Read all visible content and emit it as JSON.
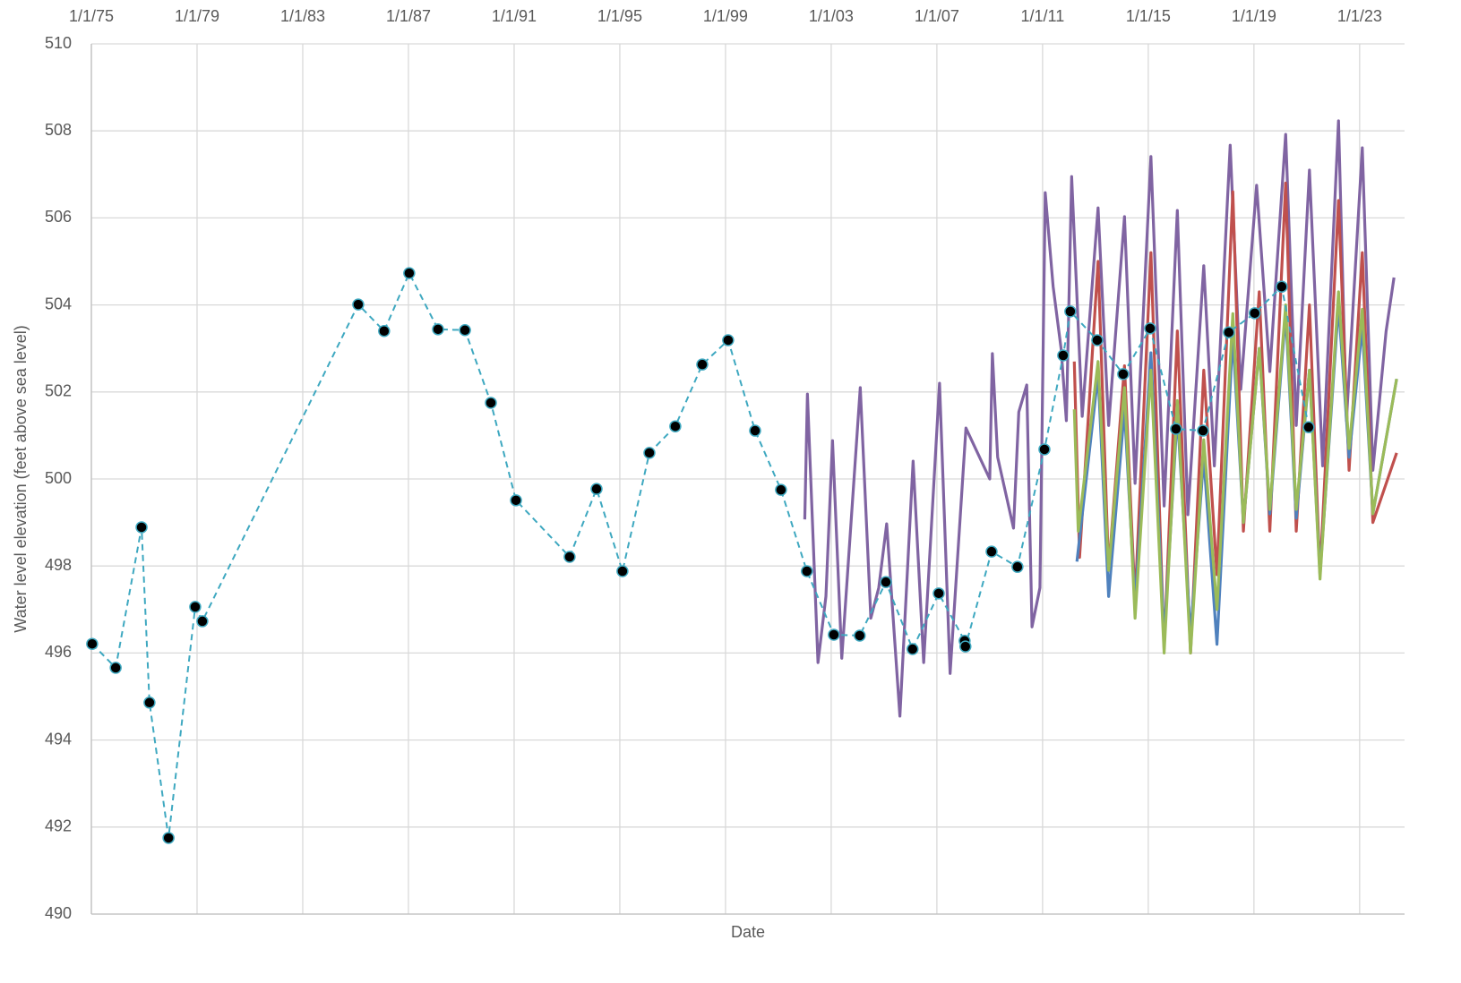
{
  "chart_data": {
    "type": "line",
    "x_label": "Date",
    "y_label": "Water level elevation (feet above sea level)",
    "xlim": [
      1975,
      2024.7
    ],
    "xticks": [
      {
        "value": 1975,
        "label": "1/1/75"
      },
      {
        "value": 1979,
        "label": "1/1/79"
      },
      {
        "value": 1983,
        "label": "1/1/83"
      },
      {
        "value": 1987,
        "label": "1/1/87"
      },
      {
        "value": 1991,
        "label": "1/1/91"
      },
      {
        "value": 1995,
        "label": "1/1/95"
      },
      {
        "value": 1999,
        "label": "1/1/99"
      },
      {
        "value": 2003,
        "label": "1/1/03"
      },
      {
        "value": 2007,
        "label": "1/1/07"
      },
      {
        "value": 2011,
        "label": "1/1/11"
      },
      {
        "value": 2015,
        "label": "1/1/15"
      },
      {
        "value": 2019,
        "label": "1/1/19"
      },
      {
        "value": 2023,
        "label": "1/1/23"
      }
    ],
    "ylim": [
      490,
      510
    ],
    "yticks": [
      490,
      492,
      494,
      496,
      498,
      500,
      502,
      504,
      506,
      508,
      510
    ],
    "grid": true,
    "x_axis_position": "top",
    "series": [
      {
        "color": "#8064a2",
        "line_style": "solid",
        "marker": "none",
        "x": [
          2002.0,
          2002.1,
          2002.5,
          2002.8,
          2003.05,
          2003.4,
          2004.1,
          2004.5,
          2004.8,
          2005.1,
          2005.6,
          2006.1,
          2006.5,
          2007.1,
          2007.5,
          2008.1,
          2009.0,
          2009.1,
          2009.3,
          2009.9,
          2010.1,
          2010.4,
          2010.6,
          2010.9,
          2011.1,
          2011.4,
          2011.7,
          2011.9,
          2012.1,
          2012.5,
          2013.1,
          2013.5,
          2014.1,
          2014.5,
          2015.1,
          2015.6,
          2016.1,
          2016.5,
          2017.1,
          2017.5,
          2018.1,
          2018.5,
          2019.1,
          2019.6,
          2020.2,
          2020.6,
          2021.1,
          2021.6,
          2022.2,
          2022.5,
          2023.1,
          2023.5,
          2024.0,
          2024.3
        ],
        "values": [
          499.07,
          501.95,
          495.78,
          497.3,
          500.88,
          495.88,
          502.1,
          496.8,
          497.5,
          498.97,
          494.55,
          500.41,
          495.78,
          502.2,
          495.53,
          501.17,
          500.0,
          502.88,
          500.5,
          498.87,
          501.54,
          502.16,
          496.6,
          497.5,
          506.58,
          504.42,
          503.0,
          501.34,
          506.95,
          501.44,
          506.23,
          501.23,
          506.03,
          499.9,
          507.41,
          499.38,
          506.17,
          499.18,
          504.9,
          500.3,
          507.67,
          502.06,
          506.75,
          502.47,
          507.92,
          501.23,
          507.1,
          500.3,
          508.23,
          501.34,
          507.61,
          500.2,
          503.39,
          504.63
        ]
      },
      {
        "color": "#c0504d",
        "line_style": "solid",
        "marker": "none",
        "x": [
          2012.2,
          2012.4,
          2013.1,
          2013.5,
          2014.1,
          2014.5,
          2015.1,
          2015.6,
          2016.1,
          2016.6,
          2017.1,
          2017.6,
          2018.2,
          2018.6,
          2019.2,
          2019.6,
          2020.2,
          2020.6,
          2021.1,
          2021.5,
          2022.2,
          2022.6,
          2023.1,
          2023.5,
          2024.4
        ],
        "values": [
          502.7,
          498.2,
          505.0,
          497.9,
          502.6,
          497.2,
          505.2,
          496.1,
          503.4,
          496.0,
          502.5,
          497.8,
          506.6,
          498.8,
          504.3,
          498.8,
          506.8,
          498.8,
          504.0,
          497.8,
          506.4,
          500.2,
          505.2,
          499.0,
          500.6
        ]
      },
      {
        "color": "#4f81bd",
        "line_style": "solid",
        "marker": "none",
        "x": [
          2012.3,
          2013.1,
          2013.5,
          2014.1,
          2014.5,
          2015.1,
          2015.6,
          2016.1,
          2016.6,
          2017.1,
          2017.6,
          2018.2,
          2018.6,
          2019.2,
          2019.6,
          2020.2,
          2020.6,
          2021.1,
          2021.5,
          2022.2,
          2022.6,
          2023.1,
          2023.5,
          2024.4
        ],
        "values": [
          498.1,
          502.4,
          497.3,
          501.6,
          497.1,
          502.9,
          496.3,
          501.5,
          496.4,
          500.5,
          496.2,
          503.3,
          499.0,
          503.0,
          499.2,
          503.8,
          499.1,
          502.5,
          497.8,
          504.0,
          500.5,
          503.5,
          499.2,
          502.3
        ]
      },
      {
        "color": "#9bbb59",
        "line_style": "solid",
        "marker": "none",
        "x": [
          2012.2,
          2012.35,
          2013.1,
          2013.5,
          2014.1,
          2014.5,
          2015.1,
          2015.6,
          2016.1,
          2016.6,
          2017.1,
          2017.6,
          2018.2,
          2018.6,
          2019.2,
          2019.6,
          2020.2,
          2020.6,
          2021.1,
          2021.5,
          2022.2,
          2022.6,
          2023.1,
          2023.5,
          2024.4
        ],
        "values": [
          501.6,
          498.8,
          502.7,
          497.9,
          502.1,
          496.8,
          502.5,
          496.0,
          501.8,
          496.0,
          500.9,
          497.0,
          503.8,
          499.0,
          503.0,
          499.3,
          504.0,
          499.3,
          502.5,
          497.7,
          504.3,
          500.7,
          503.9,
          499.2,
          502.3
        ]
      },
      {
        "color": "#3ea8c0",
        "line_style": "dashed",
        "marker": "circle",
        "marker_color": "#000000",
        "x": [
          1975.03,
          1975.92,
          1976.9,
          1977.2,
          1977.92,
          1978.93,
          1979.2,
          1985.1,
          1986.08,
          1987.03,
          1988.12,
          1989.14,
          1990.12,
          1991.07,
          1993.1,
          1994.12,
          1995.1,
          1996.12,
          1997.1,
          1998.12,
          1999.1,
          2000.12,
          2001.1,
          2002.08,
          2003.1,
          2004.08,
          2005.07,
          2006.08,
          2007.07,
          2008.05,
          2008.08,
          2009.07,
          2010.05,
          2011.07,
          2011.78,
          2012.05,
          2013.07,
          2014.05,
          2015.07,
          2016.05,
          2017.07,
          2018.05,
          2019.03,
          2020.05,
          2021.07
        ],
        "values": [
          496.21,
          495.66,
          498.89,
          494.86,
          491.75,
          497.06,
          496.73,
          504.01,
          503.4,
          504.73,
          503.44,
          503.42,
          501.75,
          499.51,
          498.21,
          499.77,
          497.88,
          500.6,
          501.21,
          502.63,
          503.19,
          501.11,
          499.75,
          497.88,
          496.42,
          496.4,
          497.63,
          496.09,
          497.37,
          496.28,
          496.15,
          498.33,
          497.98,
          500.68,
          502.84,
          503.85,
          503.19,
          502.41,
          503.46,
          501.15,
          501.11,
          503.37,
          503.81,
          504.42,
          501.19
        ]
      }
    ]
  }
}
